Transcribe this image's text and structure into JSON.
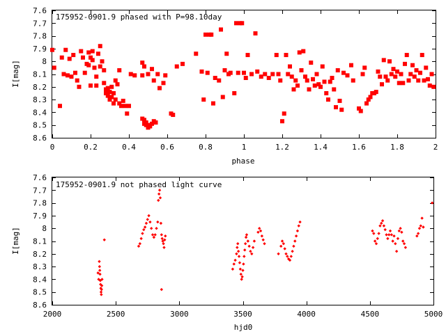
{
  "chart_data": [
    {
      "type": "scatter",
      "title": "175952-0901.9 phased with P=98.10day",
      "xlabel": "phase",
      "ylabel": "I[mag]",
      "xlim": [
        0,
        2
      ],
      "ylim": [
        8.6,
        7.6
      ],
      "y_inverted": true,
      "x_ticks": [
        "0",
        "0.2",
        "0.4",
        "0.6",
        "0.8",
        "1",
        "1.2",
        "1.4",
        "1.6",
        "1.8",
        "2"
      ],
      "y_ticks": [
        "7.6",
        "7.7",
        "7.8",
        "7.9",
        "8",
        "8.1",
        "8.2",
        "8.3",
        "8.4",
        "8.5",
        "8.6"
      ],
      "marker_color": "#ff0000",
      "marker": "filled-square",
      "points": [
        [
          0.0,
          7.91
        ],
        [
          0.01,
          8.05
        ],
        [
          0.04,
          8.35
        ],
        [
          0.05,
          7.97
        ],
        [
          0.06,
          8.1
        ],
        [
          0.07,
          7.91
        ],
        [
          0.08,
          8.11
        ],
        [
          0.09,
          7.98
        ],
        [
          0.1,
          8.12
        ],
        [
          0.11,
          7.95
        ],
        [
          0.12,
          8.09
        ],
        [
          0.13,
          8.15
        ],
        [
          0.14,
          8.2
        ],
        [
          0.15,
          7.92
        ],
        [
          0.16,
          7.97
        ],
        [
          0.17,
          8.09
        ],
        [
          0.18,
          8.02
        ],
        [
          0.19,
          7.93
        ],
        [
          0.19,
          8.03
        ],
        [
          0.2,
          7.97
        ],
        [
          0.2,
          8.19
        ],
        [
          0.21,
          7.92
        ],
        [
          0.21,
          7.99
        ],
        [
          0.22,
          8.05
        ],
        [
          0.23,
          8.12
        ],
        [
          0.23,
          8.19
        ],
        [
          0.24,
          7.94
        ],
        [
          0.25,
          7.88
        ],
        [
          0.25,
          8.04
        ],
        [
          0.26,
          8.0
        ],
        [
          0.27,
          8.07
        ],
        [
          0.27,
          8.17
        ],
        [
          0.28,
          8.22
        ],
        [
          0.28,
          8.25
        ],
        [
          0.29,
          8.27
        ],
        [
          0.29,
          8.21
        ],
        [
          0.3,
          8.24
        ],
        [
          0.3,
          8.3
        ],
        [
          0.31,
          8.28
        ],
        [
          0.31,
          8.2
        ],
        [
          0.32,
          8.33
        ],
        [
          0.32,
          8.25
        ],
        [
          0.33,
          8.15
        ],
        [
          0.33,
          8.3
        ],
        [
          0.34,
          8.18
        ],
        [
          0.35,
          8.33
        ],
        [
          0.35,
          8.07
        ],
        [
          0.36,
          8.35
        ],
        [
          0.37,
          8.31
        ],
        [
          0.38,
          8.35
        ],
        [
          0.39,
          8.41
        ],
        [
          0.4,
          8.35
        ],
        [
          0.41,
          8.1
        ],
        [
          0.43,
          8.11
        ],
        [
          0.47,
          8.11
        ],
        [
          0.47,
          8.45
        ],
        [
          0.48,
          8.46
        ],
        [
          0.48,
          8.49
        ],
        [
          0.49,
          8.48
        ],
        [
          0.49,
          8.5
        ],
        [
          0.5,
          8.51
        ],
        [
          0.5,
          8.52
        ],
        [
          0.51,
          8.51
        ],
        [
          0.51,
          8.5
        ],
        [
          0.52,
          8.49
        ],
        [
          0.53,
          8.47
        ],
        [
          0.54,
          8.48
        ],
        [
          0.47,
          8.01
        ],
        [
          0.48,
          8.04
        ],
        [
          0.5,
          8.1
        ],
        [
          0.52,
          8.06
        ],
        [
          0.53,
          8.15
        ],
        [
          0.55,
          8.1
        ],
        [
          0.56,
          8.21
        ],
        [
          0.58,
          8.17
        ],
        [
          0.59,
          8.11
        ],
        [
          0.62,
          8.41
        ],
        [
          0.63,
          8.42
        ],
        [
          0.65,
          8.04
        ],
        [
          0.68,
          8.02
        ],
        [
          0.75,
          7.94
        ],
        [
          0.78,
          8.08
        ],
        [
          0.79,
          8.3
        ],
        [
          0.8,
          7.79
        ],
        [
          0.81,
          8.09
        ],
        [
          0.82,
          7.79
        ],
        [
          0.83,
          7.79
        ],
        [
          0.84,
          8.33
        ],
        [
          0.85,
          8.13
        ],
        [
          0.87,
          8.15
        ],
        [
          0.88,
          7.75
        ],
        [
          0.89,
          8.28
        ],
        [
          0.9,
          8.07
        ],
        [
          0.91,
          7.94
        ],
        [
          0.92,
          8.1
        ],
        [
          0.93,
          8.09
        ],
        [
          0.95,
          8.25
        ],
        [
          0.96,
          7.7
        ],
        [
          0.97,
          8.09
        ],
        [
          0.98,
          7.7
        ],
        [
          0.99,
          7.7
        ],
        [
          1.0,
          8.09
        ],
        [
          1.01,
          8.13
        ],
        [
          1.02,
          7.95
        ],
        [
          1.04,
          8.1
        ],
        [
          1.06,
          7.78
        ],
        [
          1.07,
          8.08
        ],
        [
          1.09,
          8.12
        ],
        [
          1.11,
          8.1
        ],
        [
          1.13,
          8.13
        ],
        [
          1.15,
          8.1
        ],
        [
          1.17,
          7.95
        ],
        [
          1.18,
          8.1
        ],
        [
          1.19,
          8.15
        ],
        [
          1.2,
          8.47
        ],
        [
          1.21,
          8.41
        ],
        [
          1.22,
          7.95
        ],
        [
          1.23,
          8.1
        ],
        [
          1.24,
          8.04
        ],
        [
          1.25,
          8.12
        ],
        [
          1.26,
          8.22
        ],
        [
          1.27,
          8.15
        ],
        [
          1.28,
          8.19
        ],
        [
          1.29,
          7.93
        ],
        [
          1.3,
          8.07
        ],
        [
          1.31,
          7.92
        ],
        [
          1.32,
          8.12
        ],
        [
          1.33,
          8.15
        ],
        [
          1.34,
          8.22
        ],
        [
          1.35,
          8.01
        ],
        [
          1.36,
          8.14
        ],
        [
          1.37,
          8.19
        ],
        [
          1.38,
          8.1
        ],
        [
          1.39,
          8.18
        ],
        [
          1.4,
          8.2
        ],
        [
          1.41,
          8.04
        ],
        [
          1.42,
          8.16
        ],
        [
          1.43,
          8.25
        ],
        [
          1.44,
          8.3
        ],
        [
          1.45,
          8.16
        ],
        [
          1.46,
          8.13
        ],
        [
          1.47,
          8.22
        ],
        [
          1.48,
          8.36
        ],
        [
          1.49,
          8.07
        ],
        [
          1.5,
          8.31
        ],
        [
          1.51,
          8.38
        ],
        [
          1.52,
          8.09
        ],
        [
          1.54,
          8.11
        ],
        [
          1.56,
          8.03
        ],
        [
          1.57,
          8.15
        ],
        [
          1.6,
          8.37
        ],
        [
          1.61,
          8.39
        ],
        [
          1.62,
          8.1
        ],
        [
          1.63,
          8.05
        ],
        [
          1.64,
          8.33
        ],
        [
          1.65,
          8.3
        ],
        [
          1.66,
          8.28
        ],
        [
          1.67,
          8.25
        ],
        [
          1.68,
          8.25
        ],
        [
          1.69,
          8.24
        ],
        [
          1.7,
          8.08
        ],
        [
          1.71,
          8.12
        ],
        [
          1.72,
          8.18
        ],
        [
          1.73,
          7.99
        ],
        [
          1.74,
          8.12
        ],
        [
          1.75,
          8.15
        ],
        [
          1.76,
          8.0
        ],
        [
          1.77,
          8.1
        ],
        [
          1.78,
          8.06
        ],
        [
          1.79,
          8.12
        ],
        [
          1.8,
          8.08
        ],
        [
          1.81,
          8.17
        ],
        [
          1.82,
          8.1
        ],
        [
          1.83,
          8.17
        ],
        [
          1.84,
          8.02
        ],
        [
          1.85,
          7.95
        ],
        [
          1.86,
          8.15
        ],
        [
          1.87,
          8.1
        ],
        [
          1.88,
          8.03
        ],
        [
          1.89,
          8.12
        ],
        [
          1.9,
          8.07
        ],
        [
          1.91,
          8.15
        ],
        [
          1.92,
          8.09
        ],
        [
          1.93,
          7.95
        ],
        [
          1.94,
          8.15
        ],
        [
          1.95,
          8.05
        ],
        [
          1.96,
          8.14
        ],
        [
          1.97,
          8.19
        ],
        [
          1.98,
          8.1
        ],
        [
          1.99,
          8.2
        ]
      ]
    },
    {
      "type": "scatter",
      "title": "175952-0901.9 not phased light curve",
      "xlabel": "hjd0",
      "ylabel": "I[mag]",
      "xlim": [
        2000,
        5000
      ],
      "ylim": [
        8.6,
        7.6
      ],
      "y_inverted": true,
      "x_ticks": [
        "2000",
        "2500",
        "3000",
        "3500",
        "4000",
        "4500",
        "5000"
      ],
      "y_ticks": [
        "7.6",
        "7.7",
        "7.8",
        "7.9",
        "8",
        "8.1",
        "8.2",
        "8.3",
        "8.4",
        "8.5",
        "8.6"
      ],
      "marker_color": "#ff0000",
      "marker": "small-diamond",
      "points": [
        [
          2360,
          8.35
        ],
        [
          2365,
          8.4
        ],
        [
          2370,
          8.26
        ],
        [
          2372,
          8.3
        ],
        [
          2374,
          8.33
        ],
        [
          2376,
          8.36
        ],
        [
          2378,
          8.41
        ],
        [
          2380,
          8.44
        ],
        [
          2382,
          8.47
        ],
        [
          2384,
          8.5
        ],
        [
          2386,
          8.52
        ],
        [
          2388,
          8.48
        ],
        [
          2390,
          8.45
        ],
        [
          2392,
          8.4
        ],
        [
          2410,
          8.09
        ],
        [
          2680,
          8.14
        ],
        [
          2690,
          8.12
        ],
        [
          2700,
          8.08
        ],
        [
          2710,
          8.04
        ],
        [
          2720,
          8.01
        ],
        [
          2730,
          7.99
        ],
        [
          2740,
          7.96
        ],
        [
          2750,
          7.93
        ],
        [
          2760,
          7.9
        ],
        [
          2770,
          7.95
        ],
        [
          2780,
          8.0
        ],
        [
          2790,
          8.05
        ],
        [
          2800,
          8.07
        ],
        [
          2810,
          8.05
        ],
        [
          2820,
          8.0
        ],
        [
          2830,
          7.95
        ],
        [
          2835,
          7.78
        ],
        [
          2840,
          7.73
        ],
        [
          2845,
          7.7
        ],
        [
          2850,
          7.76
        ],
        [
          2855,
          7.96
        ],
        [
          2860,
          8.05
        ],
        [
          2865,
          8.08
        ],
        [
          2870,
          8.1
        ],
        [
          2875,
          8.12
        ],
        [
          2880,
          8.15
        ],
        [
          2885,
          8.09
        ],
        [
          2890,
          8.06
        ],
        [
          2860,
          8.48
        ],
        [
          3420,
          8.32
        ],
        [
          3430,
          8.28
        ],
        [
          3440,
          8.25
        ],
        [
          3450,
          8.2
        ],
        [
          3455,
          8.15
        ],
        [
          3460,
          8.12
        ],
        [
          3465,
          8.18
        ],
        [
          3470,
          8.22
        ],
        [
          3475,
          8.27
        ],
        [
          3480,
          8.32
        ],
        [
          3485,
          8.36
        ],
        [
          3490,
          8.4
        ],
        [
          3495,
          8.38
        ],
        [
          3500,
          8.33
        ],
        [
          3505,
          8.28
        ],
        [
          3510,
          8.22
        ],
        [
          3515,
          8.17
        ],
        [
          3520,
          8.12
        ],
        [
          3525,
          8.07
        ],
        [
          3530,
          8.05
        ],
        [
          3540,
          8.1
        ],
        [
          3550,
          8.14
        ],
        [
          3560,
          8.18
        ],
        [
          3570,
          8.2
        ],
        [
          3580,
          8.15
        ],
        [
          3590,
          8.1
        ],
        [
          3620,
          8.03
        ],
        [
          3630,
          8.0
        ],
        [
          3640,
          8.02
        ],
        [
          3650,
          8.06
        ],
        [
          3660,
          8.09
        ],
        [
          3670,
          8.12
        ],
        [
          3780,
          8.2
        ],
        [
          3800,
          8.14
        ],
        [
          3810,
          8.1
        ],
        [
          3820,
          8.12
        ],
        [
          3830,
          8.16
        ],
        [
          3840,
          8.2
        ],
        [
          3850,
          8.22
        ],
        [
          3860,
          8.24
        ],
        [
          3870,
          8.25
        ],
        [
          3880,
          8.22
        ],
        [
          3890,
          8.18
        ],
        [
          3900,
          8.14
        ],
        [
          3910,
          8.1
        ],
        [
          3920,
          8.06
        ],
        [
          3930,
          8.02
        ],
        [
          3940,
          7.98
        ],
        [
          3950,
          7.95
        ],
        [
          4520,
          8.02
        ],
        [
          4530,
          8.04
        ],
        [
          4540,
          8.1
        ],
        [
          4550,
          8.12
        ],
        [
          4560,
          8.08
        ],
        [
          4570,
          8.04
        ],
        [
          4580,
          7.98
        ],
        [
          4590,
          7.96
        ],
        [
          4600,
          7.94
        ],
        [
          4610,
          7.98
        ],
        [
          4620,
          8.01
        ],
        [
          4630,
          8.05
        ],
        [
          4640,
          8.08
        ],
        [
          4650,
          8.05
        ],
        [
          4660,
          8.02
        ],
        [
          4670,
          8.05
        ],
        [
          4680,
          8.1
        ],
        [
          4690,
          8.06
        ],
        [
          4700,
          8.12
        ],
        [
          4710,
          8.18
        ],
        [
          4720,
          8.08
        ],
        [
          4730,
          8.02
        ],
        [
          4740,
          8.0
        ],
        [
          4750,
          8.03
        ],
        [
          4760,
          8.1
        ],
        [
          4770,
          8.12
        ],
        [
          4780,
          8.15
        ],
        [
          4870,
          8.06
        ],
        [
          4880,
          8.04
        ],
        [
          4890,
          8.0
        ],
        [
          4900,
          7.98
        ],
        [
          4910,
          7.92
        ],
        [
          4920,
          7.99
        ],
        [
          4990,
          7.8
        ]
      ]
    }
  ]
}
